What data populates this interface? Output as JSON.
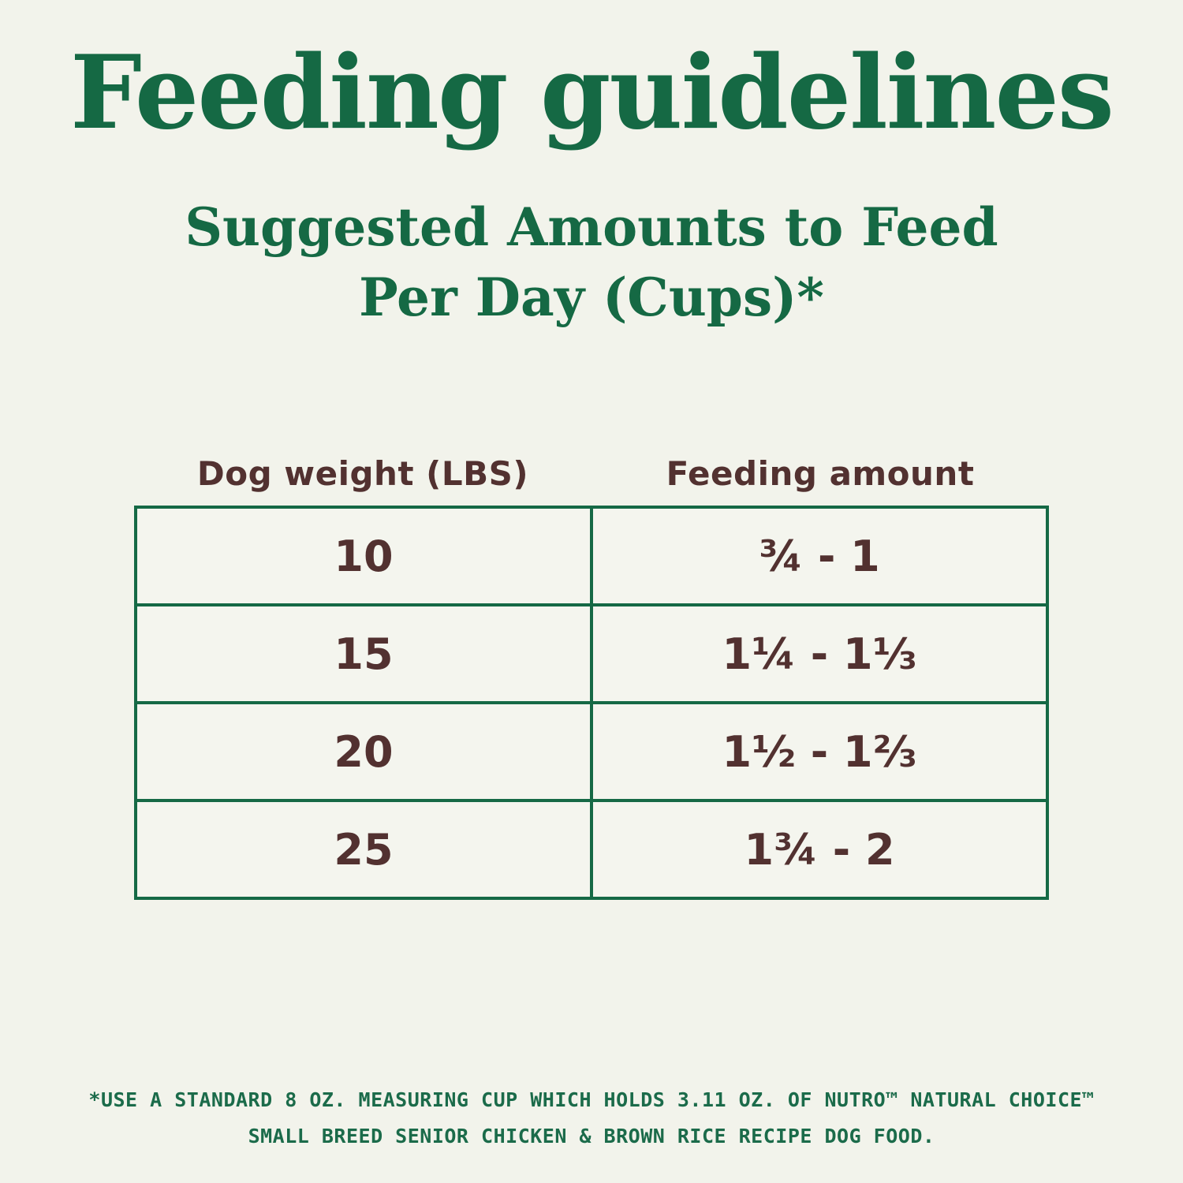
{
  "page": {
    "title": "Feeding guidelines",
    "subtitle_line1": "Suggested Amounts to Feed",
    "subtitle_line2": "Per Day (Cups)*"
  },
  "colors": {
    "background": "#f2f3eb",
    "heading_green": "#156944",
    "table_border_green": "#156945",
    "text_brown": "#523130",
    "footnote_green": "#1b6b4a"
  },
  "table": {
    "columns": [
      "Dog weight (LBS)",
      "Feeding amount"
    ],
    "rows": [
      {
        "weight": "10",
        "amount": "¾ - 1"
      },
      {
        "weight": "15",
        "amount": "1¼ - 1⅓"
      },
      {
        "weight": "20",
        "amount": "1½ - 1⅔"
      },
      {
        "weight": "25",
        "amount": "1¾ - 2"
      }
    ]
  },
  "footnote": {
    "line1": "*USE A STANDARD 8 OZ. MEASURING CUP WHICH HOLDS 3.11 OZ. OF NUTRO™ NATURAL CHOICE™",
    "line2": "SMALL BREED SENIOR CHICKEN & BROWN RICE RECIPE DOG FOOD."
  }
}
